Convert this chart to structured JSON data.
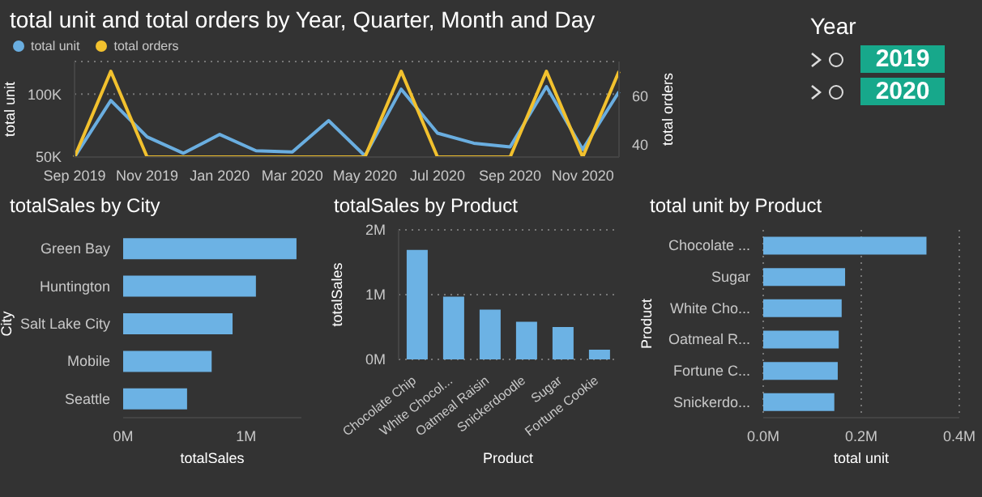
{
  "chart_data": [
    {
      "type": "line",
      "title": "total unit and total orders by Year, Quarter, Month and Day",
      "ylabel": "total unit",
      "y2label": "total orders",
      "categories": [
        "Sep 2019",
        null,
        "Nov 2019",
        null,
        "Jan 2020",
        null,
        "Mar 2020",
        null,
        "May 2020",
        null,
        "Jul 2020",
        null,
        "Sep 2020",
        null,
        "Nov 2020",
        null
      ],
      "series": [
        {
          "name": "total unit",
          "color": "#6aaee0",
          "axis": "y",
          "values": [
            50000,
            95000,
            66000,
            53000,
            68000,
            55000,
            54000,
            79000,
            51000,
            104000,
            69000,
            61000,
            58000,
            106000,
            56000,
            102000
          ]
        },
        {
          "name": "total orders",
          "color": "#f2c12e",
          "axis": "y2",
          "values": [
            35,
            70,
            35,
            35,
            35,
            35,
            35,
            35,
            35,
            70,
            35,
            35,
            35,
            70,
            35,
            70
          ]
        }
      ],
      "ylim": [
        50000,
        126000
      ],
      "yticks": [
        {
          "value": 50000,
          "label": "50K"
        },
        {
          "value": 100000,
          "label": "100K"
        }
      ],
      "y2lim": [
        35,
        74
      ],
      "y2ticks": [
        40,
        60
      ],
      "grid": "y",
      "legend": "top left",
      "marker": "none",
      "line_style": "solid"
    },
    {
      "type": "other",
      "title": "Year",
      "categories": [
        "2019",
        "2020"
      ],
      "color": "#17a88b"
    },
    {
      "type": "bar",
      "orientation": "horizontal",
      "title": "totalSales by City",
      "xlabel": "totalSales",
      "ylabel": "City",
      "categories": [
        "Green Bay",
        "Huntington",
        "Salt Lake City",
        "Mobile",
        "Seattle"
      ],
      "values": [
        1410000,
        1080000,
        890000,
        720000,
        520000
      ],
      "color": "#6cb2e4",
      "xlim": [
        0,
        1450000
      ],
      "xticks": [
        {
          "value": 0,
          "label": "0M"
        },
        {
          "value": 1000000,
          "label": "1M"
        }
      ]
    },
    {
      "type": "bar",
      "title": "totalSales by Product",
      "xlabel": "Product",
      "ylabel": "totalSales",
      "categories": [
        "Chocolate Chip",
        "White Chocol...",
        "Oatmeal Raisin",
        "Snickerdoodle",
        "Sugar",
        "Fortune Cookie"
      ],
      "values": [
        1690000,
        970000,
        770000,
        580000,
        500000,
        150000
      ],
      "color": "#6cb2e4",
      "ylim": [
        0,
        2000000
      ],
      "yticks": [
        {
          "value": 0,
          "label": "0M"
        },
        {
          "value": 1000000,
          "label": "1M"
        },
        {
          "value": 2000000,
          "label": "2M"
        }
      ],
      "grid": "y"
    },
    {
      "type": "bar",
      "orientation": "horizontal",
      "title": "total unit by Product",
      "xlabel": "total unit",
      "ylabel": "Product",
      "categories": [
        "Chocolate ...",
        "Sugar",
        "White Cho...",
        "Oatmeal R...",
        "Fortune C...",
        "Snickerdo..."
      ],
      "values": [
        333000,
        167000,
        160000,
        154000,
        152000,
        145000
      ],
      "color": "#6cb2e4",
      "xlim": [
        0,
        400000
      ],
      "xticks": [
        {
          "value": 0,
          "label": "0.0M"
        },
        {
          "value": 200000,
          "label": "0.2M"
        },
        {
          "value": 400000,
          "label": "0.4M"
        }
      ],
      "grid": "x"
    }
  ]
}
